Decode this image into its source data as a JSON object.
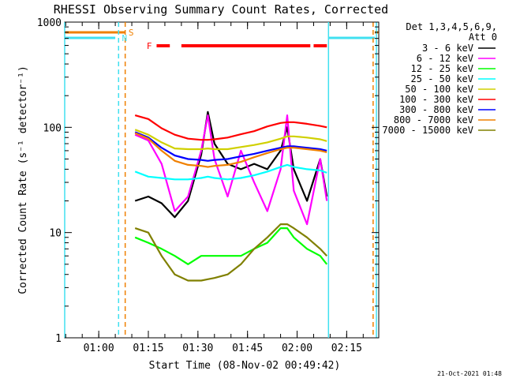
{
  "chart_data": {
    "type": "line",
    "title": "RHESSI Observing Summary Count Rates, Corrected",
    "xlabel": "Start Time (08-Nov-02 00:49:42)",
    "ylabel": "Corrected Count Rate (s⁻¹ detector⁻¹)",
    "yscale": "log",
    "ylim": [
      1,
      1000
    ],
    "xlim": [
      "00:49:42",
      "02:24:42"
    ],
    "x_ticks": [
      "01:00",
      "01:15",
      "01:30",
      "01:45",
      "02:00",
      "02:15"
    ],
    "y_ticks": [
      "1",
      "10",
      "100",
      "1000"
    ],
    "legend": {
      "placement": "top-right outside",
      "header": [
        "Det 1,3,4,5,6,9,",
        "Att 0"
      ]
    },
    "timestamp": "21-Oct-2021 01:48",
    "flag_labels": [
      "S",
      "N",
      "F"
    ],
    "flags": [
      {
        "name": "S",
        "color": "#f08000",
        "intervals": [
          [
            "00:49:42",
            "01:08:00"
          ],
          [
            "02:23:30",
            "02:24:42"
          ]
        ]
      },
      {
        "name": "N",
        "color": "#40e0f0",
        "intervals": [
          [
            "00:49:42",
            "01:05:00"
          ],
          [
            "02:09:30",
            "02:23:30"
          ]
        ]
      },
      {
        "name": "F",
        "color": "#ff0000",
        "intervals": [
          [
            "01:17:30",
            "01:21:30"
          ],
          [
            "01:25:00",
            "02:04:00"
          ],
          [
            "02:05:00",
            "02:09:00"
          ]
        ]
      }
    ],
    "data_gaps": [
      [
        "00:49:42",
        "01:11:00"
      ],
      [
        "02:09:30",
        "02:23:00"
      ]
    ],
    "vertical_lines": [
      {
        "time": "00:49:42",
        "style": "solid",
        "color": "#40e0f0"
      },
      {
        "time": "01:06:00",
        "style": "dashed",
        "color": "#40e0f0"
      },
      {
        "time": "01:08:00",
        "style": "dashed",
        "color": "#f08000"
      },
      {
        "time": "02:09:30",
        "style": "solid",
        "color": "#40e0f0"
      },
      {
        "time": "02:23:00",
        "style": "dashed",
        "color": "#f08000"
      },
      {
        "time": "02:24:00",
        "style": "solid",
        "color": "#40e0f0"
      }
    ],
    "x": [
      "01:11",
      "01:15",
      "01:19",
      "01:23",
      "01:27",
      "01:31",
      "01:33",
      "01:35",
      "01:39",
      "01:43",
      "01:47",
      "01:51",
      "01:55",
      "01:57",
      "01:59",
      "02:03",
      "02:07",
      "02:09"
    ],
    "series": [
      {
        "name": "3 - 6 keV",
        "color": "#000000",
        "values": [
          20,
          22,
          19,
          14,
          20,
          55,
          140,
          70,
          45,
          40,
          45,
          40,
          60,
          100,
          40,
          20,
          50,
          22
        ]
      },
      {
        "name": "6 - 12 keV",
        "color": "#ff00ff",
        "values": [
          85,
          75,
          45,
          16,
          22,
          60,
          130,
          50,
          22,
          60,
          30,
          16,
          40,
          130,
          25,
          12,
          50,
          20
        ]
      },
      {
        "name": "12 - 25 keV",
        "color": "#00ff00",
        "values": [
          9,
          8,
          7,
          6,
          5,
          6,
          6,
          6,
          6,
          6,
          7,
          8,
          11,
          11,
          9,
          7,
          6,
          5
        ]
      },
      {
        "name": "25 - 50 keV",
        "color": "#00ffff",
        "values": [
          38,
          34,
          33,
          32,
          32,
          33,
          34,
          33,
          32,
          33,
          35,
          38,
          42,
          44,
          42,
          40,
          39,
          37
        ]
      },
      {
        "name": "50 - 100 keV",
        "color": "#d0d000",
        "values": [
          95,
          85,
          72,
          63,
          62,
          62,
          63,
          62,
          62,
          65,
          68,
          72,
          78,
          82,
          82,
          80,
          77,
          74
        ]
      },
      {
        "name": "100 - 300 keV",
        "color": "#ff0000",
        "values": [
          130,
          120,
          98,
          85,
          78,
          76,
          76,
          77,
          80,
          86,
          92,
          102,
          110,
          112,
          112,
          108,
          103,
          100
        ]
      },
      {
        "name": "300 - 800 keV",
        "color": "#0000ff",
        "values": [
          90,
          80,
          64,
          54,
          50,
          49,
          48,
          49,
          50,
          53,
          56,
          60,
          64,
          66,
          66,
          64,
          62,
          60
        ]
      },
      {
        "name": "800 - 7000 keV",
        "color": "#f08000",
        "values": [
          88,
          78,
          60,
          48,
          44,
          43,
          42,
          43,
          44,
          47,
          52,
          57,
          62,
          64,
          64,
          62,
          60,
          58
        ]
      },
      {
        "name": "7000 - 15000 keV",
        "color": "#808000",
        "values": [
          11,
          10,
          6,
          4,
          3.5,
          3.5,
          3.6,
          3.7,
          4,
          5,
          7,
          9,
          12,
          12,
          11,
          9,
          7,
          6
        ]
      }
    ]
  }
}
